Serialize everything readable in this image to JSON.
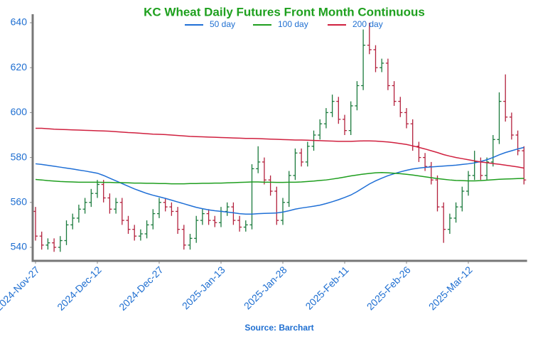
{
  "chart_data": {
    "type": "ohlc",
    "title": "KC Wheat Daily Futures Front Month Continuous",
    "source": "Source: Barchart",
    "categories": [
      "2024-Nov-27",
      null,
      null,
      null,
      null,
      null,
      null,
      null,
      null,
      null,
      "2024-Dec-12",
      null,
      null,
      null,
      null,
      null,
      null,
      null,
      null,
      null,
      "2024-Dec-27",
      null,
      null,
      null,
      null,
      null,
      null,
      null,
      null,
      null,
      "2025-Jan-13",
      null,
      null,
      null,
      null,
      null,
      null,
      null,
      null,
      null,
      "2025-Jan-28",
      null,
      null,
      null,
      null,
      null,
      null,
      null,
      null,
      null,
      "2025-Feb-11",
      null,
      null,
      null,
      null,
      null,
      null,
      null,
      null,
      null,
      "2025-Feb-26",
      null,
      null,
      null,
      null,
      null,
      null,
      null,
      null,
      null,
      "2025-Mar-12",
      null,
      null,
      null,
      null,
      null,
      null,
      null,
      null,
      null
    ],
    "ohlc": {
      "open": [
        556,
        545,
        541,
        542,
        540,
        543,
        550,
        553,
        557,
        560,
        564,
        568,
        562,
        557,
        560,
        552,
        548,
        545,
        546,
        550,
        555,
        560,
        558,
        556,
        548,
        541,
        544,
        552,
        555,
        552,
        551,
        556,
        558,
        552,
        549,
        550,
        575,
        578,
        570,
        565,
        552,
        560,
        572,
        582,
        578,
        585,
        590,
        595,
        600,
        605,
        597,
        592,
        603,
        612,
        630,
        628,
        620,
        622,
        612,
        605,
        600,
        595,
        585,
        580,
        576,
        570,
        558,
        548,
        553,
        558,
        565,
        572,
        578,
        572,
        578,
        588,
        605,
        598,
        590,
        583
      ],
      "high": [
        558,
        547,
        544,
        544,
        545,
        552,
        555,
        559,
        562,
        566,
        570,
        570,
        564,
        562,
        562,
        554,
        550,
        548,
        552,
        557,
        562,
        562,
        560,
        558,
        550,
        546,
        554,
        557,
        557,
        554,
        558,
        560,
        560,
        554,
        552,
        577,
        585,
        580,
        572,
        567,
        562,
        574,
        584,
        584,
        587,
        592,
        597,
        602,
        608,
        607,
        599,
        605,
        614,
        637,
        640,
        630,
        624,
        624,
        614,
        607,
        602,
        597,
        587,
        582,
        578,
        572,
        560,
        555,
        560,
        567,
        574,
        583,
        580,
        580,
        590,
        609,
        617,
        600,
        592,
        585
      ],
      "low": [
        543,
        539,
        539,
        538,
        538,
        541,
        548,
        551,
        555,
        558,
        562,
        560,
        555,
        555,
        550,
        546,
        543,
        543,
        544,
        548,
        553,
        556,
        554,
        546,
        539,
        539,
        542,
        550,
        550,
        549,
        549,
        554,
        550,
        547,
        547,
        548,
        573,
        568,
        563,
        550,
        550,
        558,
        570,
        576,
        576,
        583,
        588,
        593,
        598,
        595,
        590,
        590,
        601,
        610,
        626,
        618,
        618,
        610,
        603,
        598,
        593,
        583,
        578,
        574,
        568,
        556,
        542,
        546,
        551,
        556,
        563,
        570,
        570,
        570,
        576,
        586,
        596,
        588,
        581,
        568
      ],
      "close": [
        545,
        541,
        542,
        540,
        543,
        550,
        553,
        557,
        560,
        564,
        568,
        562,
        557,
        560,
        552,
        548,
        545,
        546,
        550,
        555,
        560,
        558,
        556,
        548,
        541,
        544,
        552,
        555,
        552,
        551,
        556,
        558,
        552,
        549,
        550,
        575,
        578,
        570,
        565,
        552,
        560,
        572,
        582,
        578,
        585,
        590,
        595,
        600,
        605,
        597,
        592,
        603,
        612,
        630,
        628,
        620,
        622,
        612,
        605,
        600,
        595,
        585,
        580,
        576,
        570,
        558,
        548,
        553,
        558,
        565,
        572,
        578,
        572,
        578,
        588,
        605,
        598,
        590,
        583,
        570
      ]
    },
    "up_color": "#1a7a3c",
    "down_color": "#b3203c",
    "series": [
      {
        "name": "50 day",
        "color": "#1f6fd6",
        "values": [
          577.2,
          576.9,
          576.5,
          576.1,
          575.7,
          575.3,
          574.9,
          574.4,
          574,
          573.5,
          573,
          572,
          570.8,
          569.6,
          568.4,
          567.2,
          566,
          565,
          564,
          563.2,
          562.5,
          561.8,
          561,
          560.2,
          559.4,
          558.6,
          557.8,
          557.2,
          556.7,
          556.3,
          556,
          555.7,
          555.4,
          555,
          554.8,
          554.8,
          555,
          555.1,
          555.2,
          555.3,
          555.7,
          556.3,
          557,
          557.5,
          557.9,
          558.3,
          558.8,
          559.5,
          560.3,
          561.2,
          562.2,
          563.3,
          564.8,
          566.5,
          568.2,
          569.6,
          570.8,
          571.9,
          572.8,
          573.6,
          574.3,
          574.9,
          575.3,
          575.6,
          575.8,
          576,
          576.2,
          576.4,
          576.6,
          576.9,
          577.2,
          577.6,
          578.2,
          579,
          580,
          581.2,
          582.2,
          583,
          583.8,
          584.5
        ]
      },
      {
        "name": "100 day",
        "color": "#1e9e1e",
        "values": [
          570.2,
          570,
          569.7,
          569.5,
          569.3,
          569.2,
          569.1,
          569,
          569,
          569,
          569,
          568.9,
          568.9,
          568.8,
          568.8,
          568.7,
          568.6,
          568.6,
          568.5,
          568.5,
          568.4,
          568.4,
          568.3,
          568.3,
          568.3,
          568.4,
          568.4,
          568.5,
          568.5,
          568.6,
          568.6,
          568.7,
          568.8,
          568.9,
          569,
          569.1,
          569.1,
          569,
          569,
          568.9,
          568.9,
          569,
          569,
          569.1,
          569.3,
          569.5,
          569.8,
          570,
          570.4,
          570.8,
          571.3,
          571.8,
          572.2,
          572.6,
          572.9,
          573.2,
          573.3,
          573.2,
          573,
          572.8,
          572.5,
          572.2,
          571.8,
          571.4,
          571,
          570.6,
          570.3,
          570,
          569.8,
          569.7,
          569.6,
          569.6,
          569.7,
          569.9,
          570.1,
          570.3,
          570.4,
          570.5,
          570.6,
          570.7
        ]
      },
      {
        "name": "200 day",
        "color": "#d0203f",
        "values": [
          593,
          593,
          592.8,
          592.6,
          592.5,
          592.4,
          592.3,
          592.2,
          592.1,
          592,
          591.9,
          591.8,
          591.7,
          591.5,
          591.3,
          591.1,
          591,
          590.8,
          590.6,
          590.4,
          590.3,
          590.2,
          590,
          589.8,
          589.6,
          589.4,
          589.3,
          589.2,
          589.1,
          589,
          588.9,
          588.8,
          588.7,
          588.6,
          588.5,
          588.5,
          588.4,
          588.3,
          588.2,
          588.1,
          588,
          587.9,
          587.8,
          587.8,
          587.7,
          587.6,
          587.5,
          587.4,
          587.3,
          587.2,
          587.2,
          587.2,
          587.3,
          587.4,
          587.4,
          587.3,
          587.1,
          586.9,
          586.6,
          586.2,
          585.8,
          585.2,
          584.5,
          583.8,
          583,
          582.2,
          581.3,
          580.6,
          580,
          579.5,
          579,
          578.5,
          578,
          577.7,
          577.3,
          577,
          576.6,
          576.2,
          575.8,
          575.3
        ]
      }
    ],
    "ylim": [
      534.3,
      643.8
    ],
    "yticks": [
      540,
      560,
      580,
      600,
      620,
      640
    ],
    "legend": "top"
  }
}
